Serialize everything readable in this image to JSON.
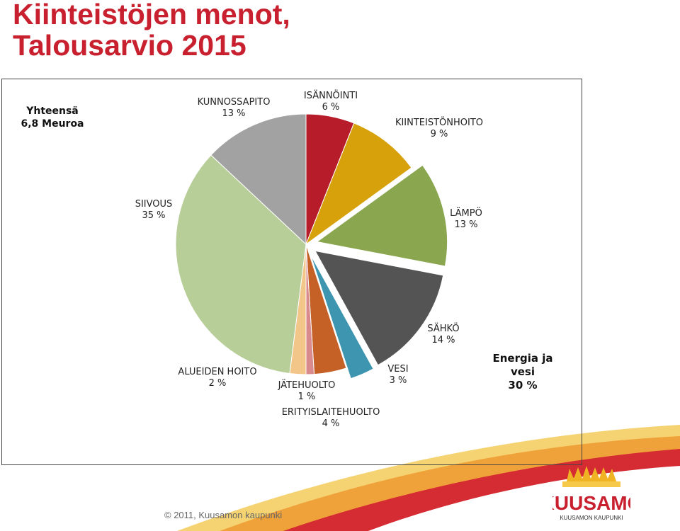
{
  "page": {
    "title_line1": "Kiinteistöjen menot,",
    "title_line2": "Talousarvio 2015",
    "total_line1": "Yhteensä",
    "total_line2": "6,8 Meuroa",
    "energy_line1": "Energia ja",
    "energy_line2": "vesi",
    "energy_line3": "30 %",
    "copyright": "© 2011, Kuusamon kaupunki",
    "logo_text": "KUUSAMO",
    "logo_subtext": "KUUSAMON KAUPUNKI"
  },
  "colors": {
    "title": "#c8202e",
    "swoosh_red": "#d52b33",
    "swoosh_orange": "#f0a23a",
    "swoosh_yellow": "#f6d372"
  },
  "chart_data": {
    "type": "pie",
    "title": "Kiinteistöjen menot, Talousarvio 2015",
    "slices": [
      {
        "name": "ISÄNNÖINTI",
        "value": 6,
        "pct": "6 %",
        "color": "#b71c2a",
        "exploded": false
      },
      {
        "name": "KIINTEISTÖNHOITO",
        "value": 9,
        "pct": "9 %",
        "color": "#d6a10b",
        "exploded": false
      },
      {
        "name": "LÄMPÖ",
        "value": 13,
        "pct": "13 %",
        "color": "#8aa64f",
        "exploded": true
      },
      {
        "name": "SÄHKÖ",
        "value": 14,
        "pct": "14 %",
        "color": "#545454",
        "exploded": true
      },
      {
        "name": "VESI",
        "value": 3,
        "pct": "3 %",
        "color": "#3e95af",
        "exploded": true
      },
      {
        "name": "ERITYISLAITEHUOLTO",
        "value": 4,
        "pct": "4 %",
        "color": "#c56127",
        "exploded": false
      },
      {
        "name": "JÄTEHUOLTO",
        "value": 1,
        "pct": "1 %",
        "color": "#d98a8c",
        "exploded": false
      },
      {
        "name": "ALUEIDEN HOITO",
        "value": 2,
        "pct": "2 %",
        "color": "#f1c688",
        "exploded": false
      },
      {
        "name": "SIIVOUS",
        "value": 35,
        "pct": "35 %",
        "color": "#b8ce99",
        "exploded": false
      },
      {
        "name": "KUNNOSSAPITO",
        "value": 13,
        "pct": "13 %",
        "color": "#a2a2a2",
        "exploded": false
      }
    ],
    "legend": "none"
  }
}
